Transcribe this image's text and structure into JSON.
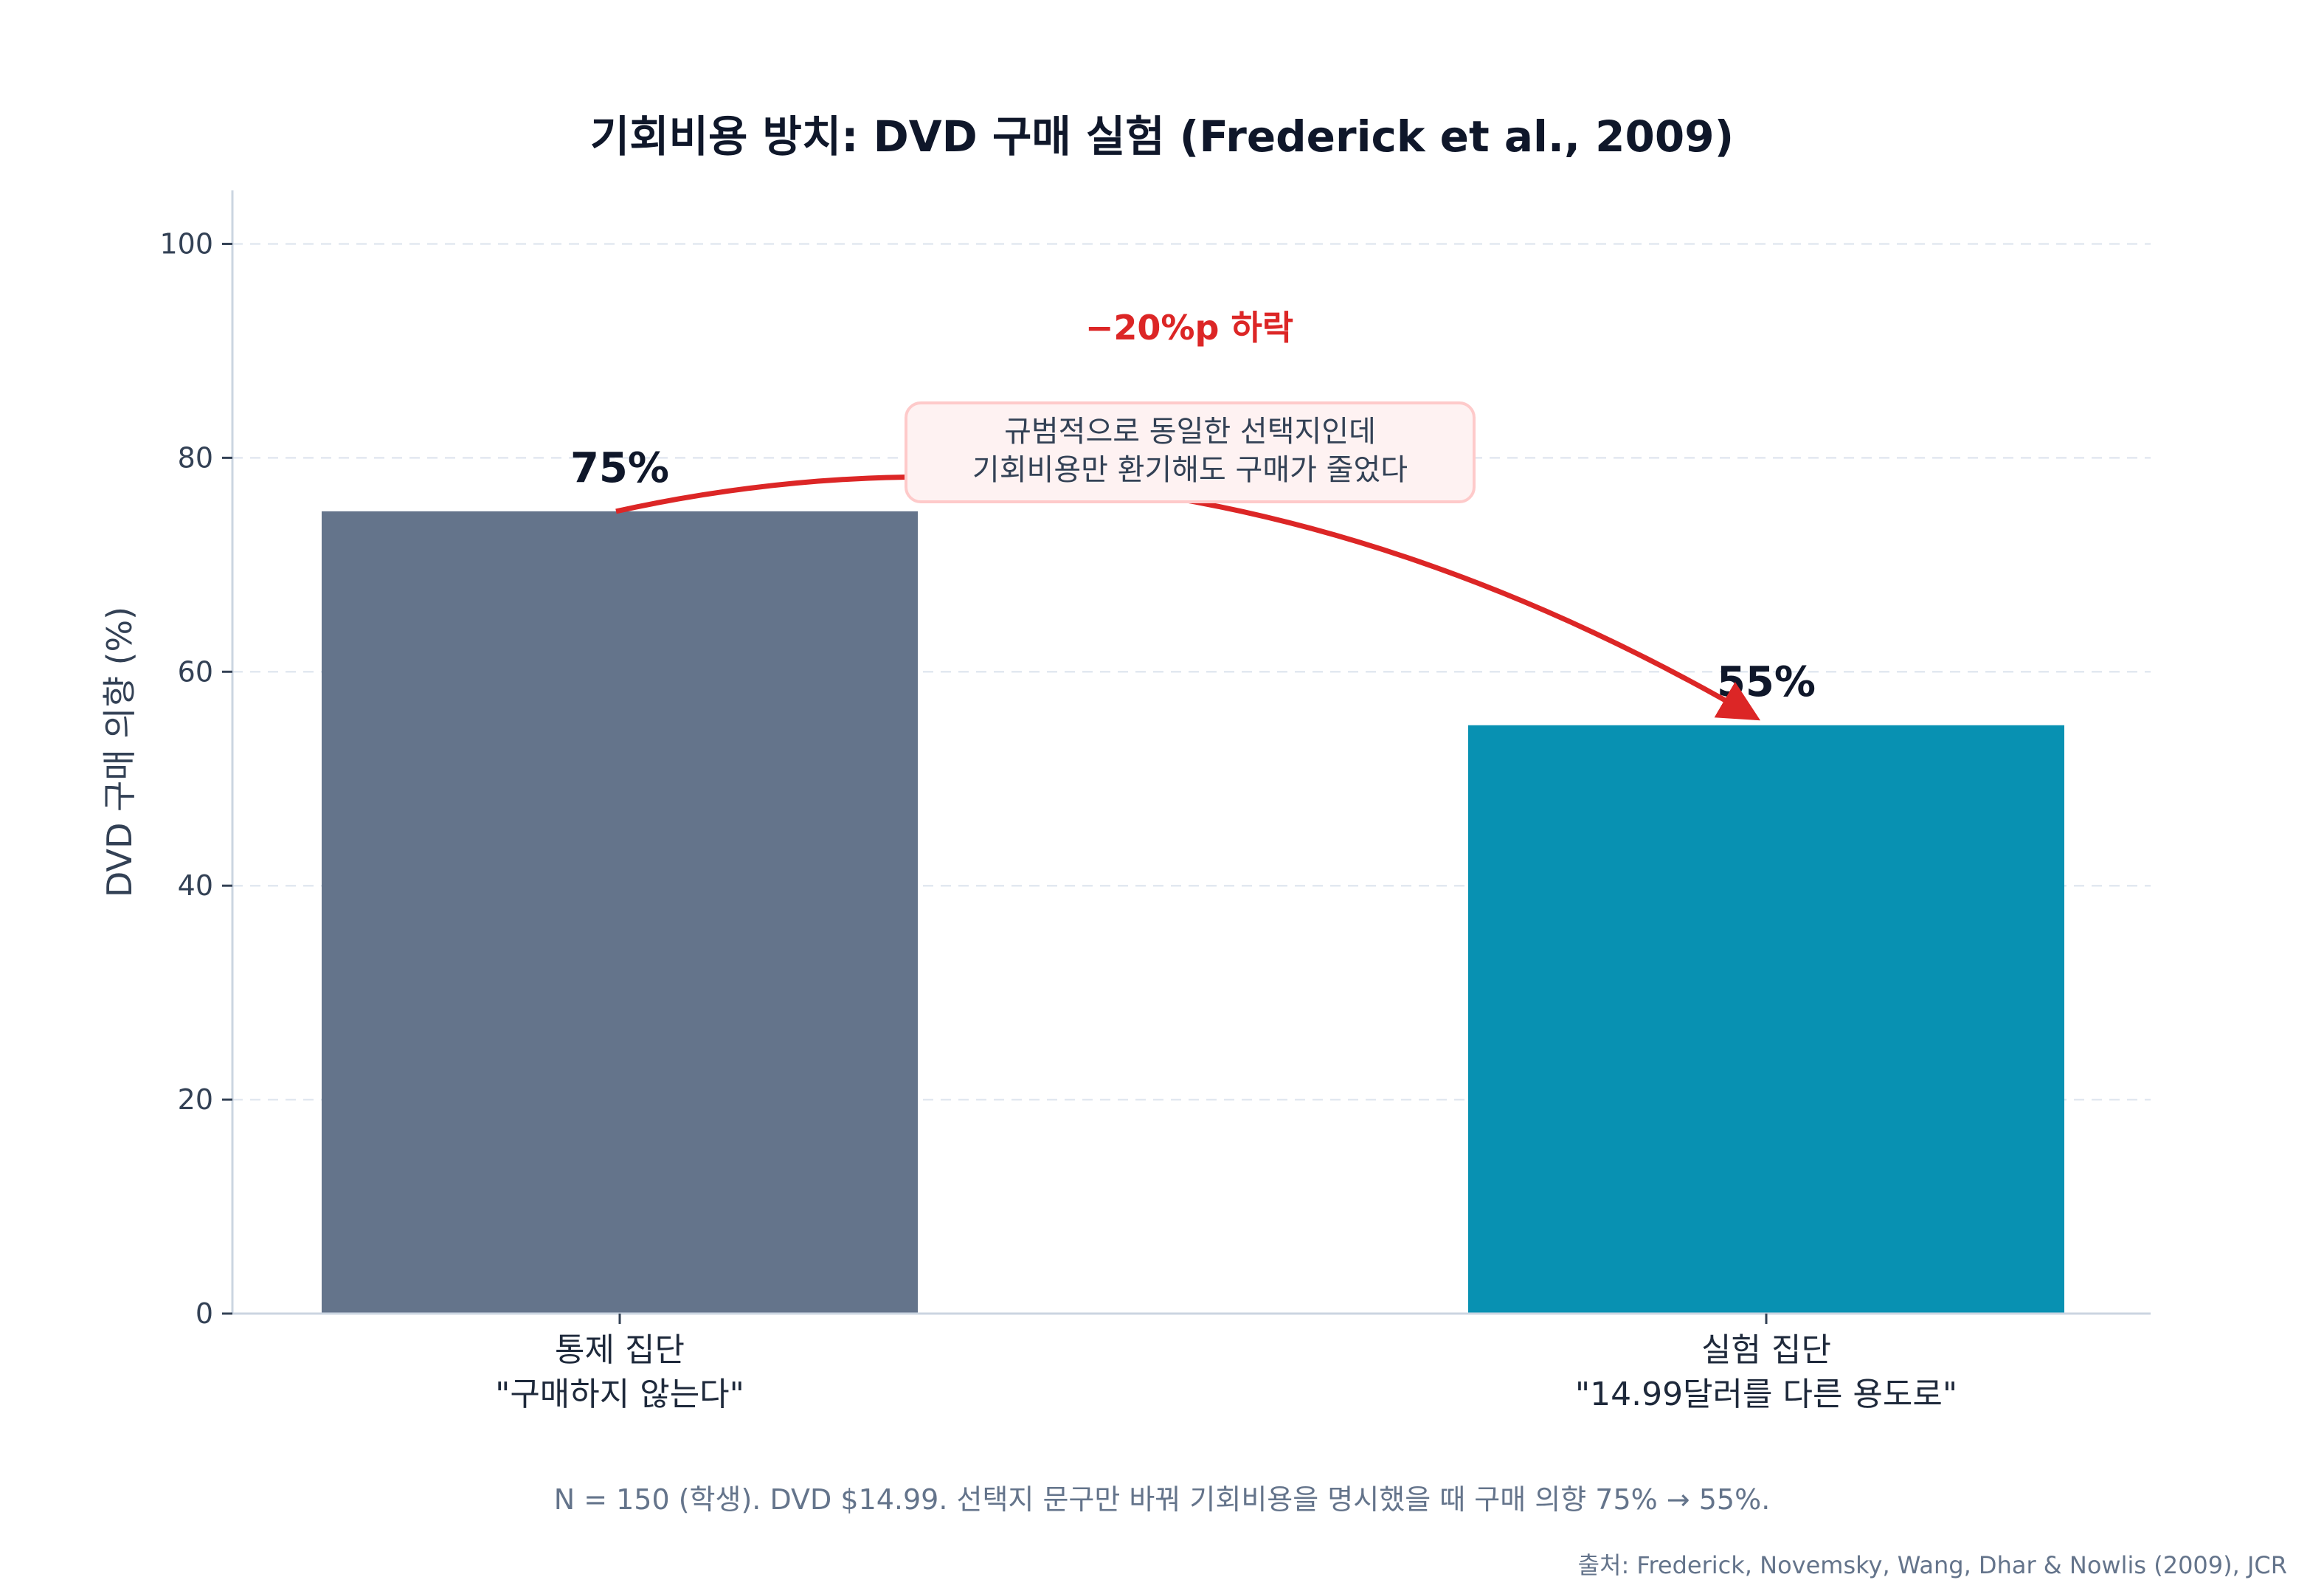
{
  "chart_data": {
    "type": "bar",
    "title": "기회비용 방치: DVD 구매 실험 (Frederick et al., 2009)",
    "ylabel": "DVD 구매 의향 (%)",
    "xlabel": "",
    "ylim": [
      0,
      105
    ],
    "yticks": [
      0,
      20,
      40,
      60,
      80,
      100
    ],
    "grid": true,
    "categories": [
      [
        "통제 집단",
        "\"구매하지 않는다\""
      ],
      [
        "실험 집단",
        "\"14.99달러를 다른 용도로\""
      ]
    ],
    "values": [
      75,
      55
    ],
    "value_labels": [
      "75%",
      "55%"
    ],
    "colors": [
      "#64748b",
      "#0891b2"
    ],
    "annotation": {
      "delta_label": "−20%p 하락",
      "note_lines": [
        "규범적으로 동일한 선택지인데",
        "기회비용만 환기해도 구매가 줄었다"
      ],
      "arrow_color": "#dc2626"
    }
  },
  "footnote": "N = 150 (학생). DVD $14.99. 선택지 문구만 바꿔 기회비용을 명시했을 때 구매 의향 75% → 55%.",
  "source": "출처: Frederick, Novemsky, Wang, Dhar & Nowlis (2009), JCR"
}
